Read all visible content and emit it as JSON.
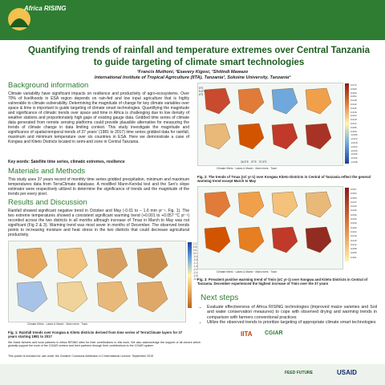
{
  "header": {
    "logo_text": "Africa RISING"
  },
  "title": "Quantifying trends of rainfall and temperature extremes over Central Tanzania to guide targeting of climate smart technologies",
  "authors_line": "¹Francis Muthoni, ²Exavery Kigosi, ¹Shitindi Mawazo",
  "affiliations_line": "International Institute of Tropical Agriculture (IITA), Tanzania¹, Sokoine University, Tanzania²",
  "sections": {
    "background": {
      "heading": "Background information",
      "body": "Climate variability have significant impacts on resilience and productivity of agro-ecosystems. Over 70% of livelihoods in ESA region depends on rain-fed and low input agriculture that is highly vulnerable to climate vulnerability. Determining the magnitude of change for key climate variables over space & time is important to guide targeting of climate smart technologies. Quantifying the magnitude and significance of climatic trends over space and time in Africa is challenging due to low density of weather stations and proportionately high gaps of existing gauge data. Gridded time series of climate data generated from remote sensing platforms could provide plausible alternative for measuring the trends of climate change in data limiting context. This study investigate the magnitude and significance of spatial-temporal trends of 37 years' (1981 to 2017) time series gridded data for rainfall, maximum and minimum temperature over six countries in ESA. Here we demonstrate a case of Kongwa and Kiteto Districts located in semi-arid zone in Central Tanzania.",
      "keywords": "Key words: Satellite time series, climatic extremes, resilience"
    },
    "methods": {
      "heading": "Materials and Methods",
      "body": "This study uses 37 years record of monthly time series gridded precipitation, minimum and maximum temperatures data from TerraClimate database. A modified Mann-Kendal test and the Sen's slope estimator were respectively utilized to determine the significance of trends and the magnitude of the trends per every pixel."
    },
    "results": {
      "heading": "Results and Discussion",
      "body": "Rainfall showed significant negative trend in October and May (-0.01 to – 1.6 mm yr⁻¹, Fig. 1). The two extreme temperatures showed a consistent significant warming trend (+0.001 to +0.057 °C yr⁻¹) recorded across the two districts in all months although increase of Tmax in March to May was not significant (Fig 2 & 3). Warming trend was most sever in months of December. The observed trends points to increasing moisture and heat stress in the two districts that could decrease agricultural productivity."
    },
    "next_steps": {
      "heading": "Next steps",
      "items": [
        "Evaluate effectiveness of Africa RISING technologies (improved maize varieties and Soil and water conservation measures) to cope with observed drying and warming trends in comparison with farmers conventional practices",
        "Utilize the observed trends to prioritize targeting of appropriate climate smart technologies"
      ]
    }
  },
  "figures": {
    "fig1_caption": "Fig. 1: Rainfall trends over Kongwa & Kiteto districts derived from time series of TerraClimate layers for 37 years starting 1981 to 2017",
    "fig2_caption": "Fig. 2: The trends of Tmax (oC yr-1) over Kongwa Kiteto Districts in Central of Tanzania reflect the general warming trend except March to May",
    "fig3_caption": "Fig. 3: Prevalent positive warming trend of Tmin (oC yr-1) over Kongwa and Kiteto Districts in Central of Tanzania. December experienced the highest increase of Tmin over the 37 years",
    "fig2_scale": [
      "0.072",
      "0.066",
      "0.060",
      "0.054",
      "0.048",
      "0.042",
      "0.036",
      "0.030",
      "0.024",
      "0.018",
      "0.012",
      "0.006",
      "0.000",
      "-0.006",
      "-0.012",
      "-0.018",
      "-0.024",
      "-0.030",
      "-0.036",
      "-0.042",
      "-0.048"
    ],
    "fig3_scale": [
      "0.057",
      "0.054",
      "0.050",
      "0.047",
      "0.043",
      "0.040",
      "0.036",
      "0.033",
      "0.029",
      "0.026",
      "0.022",
      "0.019",
      "0.015",
      "0.012",
      "0.008",
      "0.005",
      "0.001"
    ],
    "fig1_scale": [
      "1.2",
      "0.8",
      "0.4",
      "0.0",
      "-0.4",
      "-0.8",
      "-1.2",
      "-1.6",
      "-2.0",
      "-2.4",
      "-2.8",
      "-3.2"
    ],
    "legend_items": [
      "Climate Kiteto",
      "Lakes & Marsh",
      "Main rivers",
      "Town"
    ],
    "lat_labels": [
      "5°S",
      "5.5°S",
      "6°S"
    ],
    "lon_labels": [
      "36.5°E",
      "37°E",
      "37.5°E"
    ]
  },
  "footer": {
    "ack": "We thank farmers and local partners in Africa RISING sites for their contributions to this work. We also acknowledge the support of all donors which globally support the work of the CGIAR centers and their partners through their contributions to the CGIAR system",
    "license": "This poster is licensed for use under the Creative Commons Attribution 4.0 International Licence. September 2019",
    "logos": [
      "IITA",
      "CGIAR",
      "FEED FUTURE",
      "USAID"
    ]
  }
}
